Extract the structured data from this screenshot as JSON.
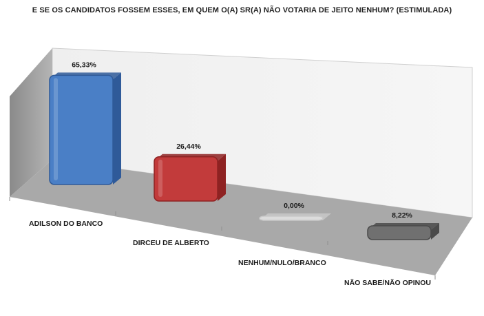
{
  "chart_data": {
    "type": "bar",
    "title": "E SE OS CANDIDATOS FOSSEM ESSES, EM QUEM O(A) SR(A) NÃO VOTARIA DE JEITO NENHUM? (ESTIMULADA)",
    "categories": [
      "ADILSON DO BANCO",
      "DIRCEU DE ALBERTO",
      "NENHUM/NULO/BRANCO",
      "NÃO SABE/NÃO OPINOU"
    ],
    "values": [
      65.33,
      26.44,
      0.0,
      8.22
    ],
    "value_labels": [
      "65,33%",
      "26,44%",
      "0,00%",
      "8,22%"
    ],
    "colors": [
      "#4a7fc6",
      "#c23b3b",
      "#dcdcdc",
      "#707070"
    ],
    "edge_colors": [
      "#2f5a99",
      "#8e2222",
      "#c8c8c8",
      "#4a4a4a"
    ],
    "ylim": [
      0,
      70
    ],
    "grid": false,
    "style": "3d"
  }
}
